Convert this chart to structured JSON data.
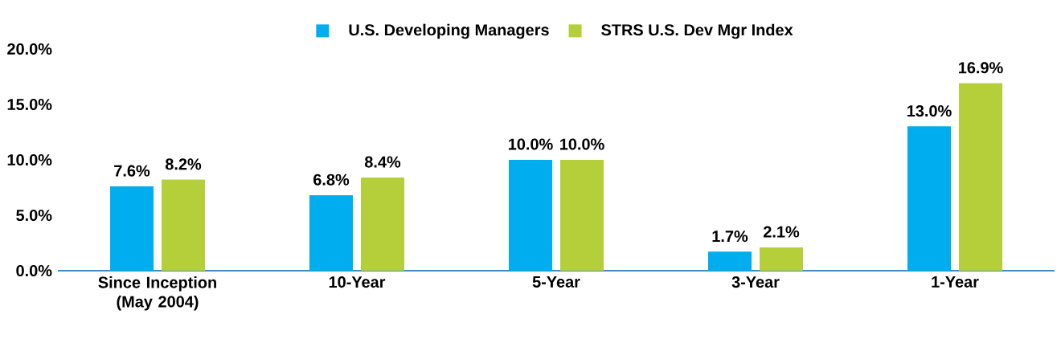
{
  "chart_data": {
    "type": "bar",
    "categories": [
      "Since Inception (May 2004)",
      "10-Year",
      "5-Year",
      "3-Year",
      "1-Year"
    ],
    "series": [
      {
        "name": "U.S. Developing Managers",
        "color": "#00aeef",
        "values": [
          7.6,
          6.8,
          10.0,
          1.7,
          13.0
        ],
        "value_labels": [
          "7.6%",
          "6.8%",
          "10.0%",
          "1.7%",
          "13.0%"
        ]
      },
      {
        "name": "STRS U.S. Dev Mgr Index",
        "color": "#b5cf3a",
        "values": [
          8.2,
          8.4,
          10.0,
          2.1,
          16.9
        ],
        "value_labels": [
          "8.2%",
          "8.4%",
          "10.0%",
          "2.1%",
          "16.9%"
        ]
      }
    ],
    "ylim": [
      0,
      20
    ],
    "yticks": [
      {
        "value": 0,
        "label": "0.0%"
      },
      {
        "value": 5,
        "label": "5.0%"
      },
      {
        "value": 10,
        "label": "10.0%"
      },
      {
        "value": 15,
        "label": "15.0%"
      },
      {
        "value": 20,
        "label": "20.0%"
      }
    ],
    "legend": "top"
  }
}
